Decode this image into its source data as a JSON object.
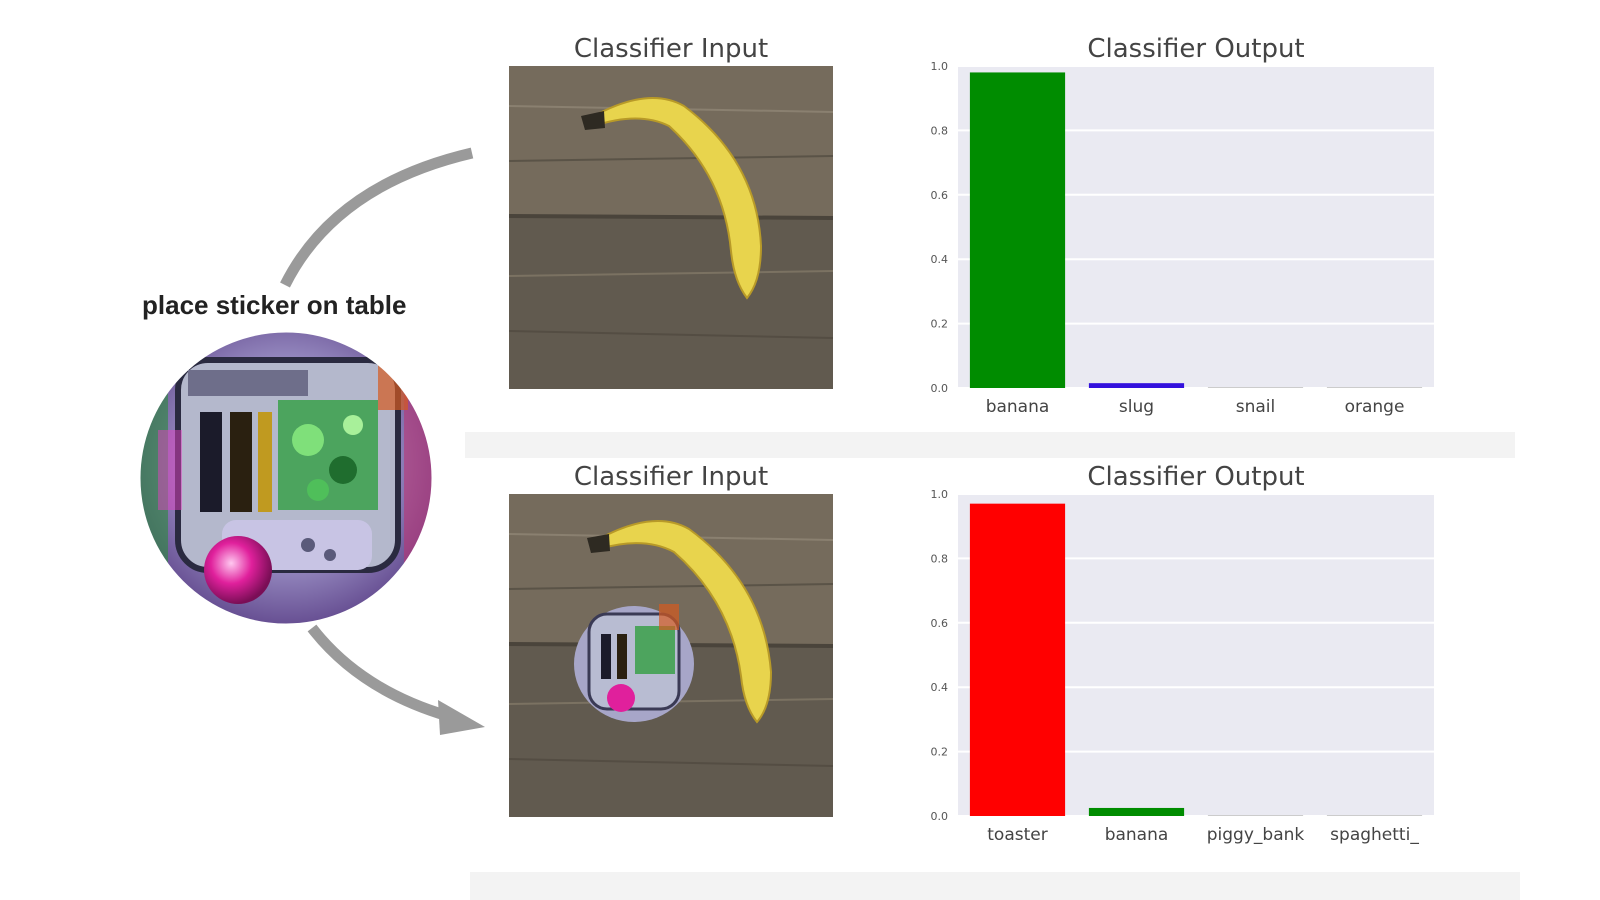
{
  "left": {
    "sticker_label": "place sticker on table"
  },
  "panels": [
    {
      "input_title": "Classifier Input",
      "output_title": "Classifier Output"
    },
    {
      "input_title": "Classifier Input",
      "output_title": "Classifier Output"
    }
  ],
  "colors": {
    "plot_bg": "#eaeaf2",
    "grid": "#ffffff",
    "arrow": "#9a9a9a",
    "banana": "#e8d44d",
    "wood": "#6f6658"
  },
  "chart_data": [
    {
      "type": "bar",
      "title": "Classifier Output",
      "categories": [
        "banana",
        "slug",
        "snail",
        "orange"
      ],
      "values": [
        0.98,
        0.015,
        0.002,
        0.001
      ],
      "colors": [
        "#008c00",
        "#3311dd",
        "#cccccc",
        "#cccccc"
      ],
      "ylim": [
        0,
        1.0
      ],
      "yticks": [
        "0.0",
        "0.2",
        "0.4",
        "0.6",
        "0.8",
        "1.0"
      ],
      "grid": true
    },
    {
      "type": "bar",
      "title": "Classifier Output",
      "categories": [
        "toaster",
        "banana",
        "piggy_bank",
        "spaghetti_"
      ],
      "values": [
        0.97,
        0.025,
        0.002,
        0.001
      ],
      "colors": [
        "#ff0000",
        "#008c00",
        "#cccccc",
        "#cccccc"
      ],
      "ylim": [
        0,
        1.0
      ],
      "yticks": [
        "0.0",
        "0.2",
        "0.4",
        "0.6",
        "0.8",
        "1.0"
      ],
      "grid": true
    }
  ]
}
